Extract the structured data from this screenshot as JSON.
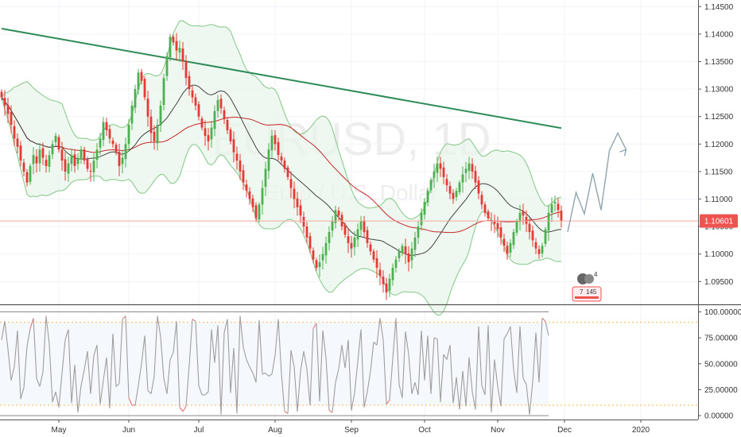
{
  "watermark": {
    "symbol": "EURUSD, 1D",
    "description": "Euro / U.S. Dollar"
  },
  "colors": {
    "up": "#4caf50",
    "down": "#e53935",
    "band_line": "#81c784",
    "band_fill": "#e8f5e9",
    "sma200": "#2e8b57",
    "sma20": "#424242",
    "sma50": "#c62828",
    "price_line": "#f4a9a0",
    "badge": "#ef5350",
    "projection": "#90a4ae",
    "osc_normal": "#9e9e9e",
    "osc_extreme": "#e57373",
    "osc_fill": "#f5f8fc",
    "level_line": "#ffb74d"
  },
  "chart_data": [
    {
      "type": "candlestick",
      "y_axis": {
        "ylim": [
          1.091,
          1.1462
        ],
        "ticks": [
          "1.14500",
          "1.14000",
          "1.13500",
          "1.13000",
          "1.12500",
          "1.12000",
          "1.11500",
          "1.11000",
          "1.10500",
          "1.10000",
          "1.09500"
        ]
      },
      "x_axis": {
        "ticks": [
          "May",
          "Jun",
          "Jul",
          "Aug",
          "Sep",
          "Oct",
          "Nov",
          "Dec",
          "2020"
        ],
        "tick_index": [
          18,
          40,
          62,
          86,
          110,
          133,
          156,
          177,
          201
        ]
      },
      "current_price": {
        "value": 1.10601,
        "label": "1.10601"
      },
      "closes": [
        1.1285,
        1.127,
        1.1255,
        1.1235,
        1.121,
        1.1195,
        1.117,
        1.115,
        1.113,
        1.116,
        1.118,
        1.1165,
        1.119,
        1.1175,
        1.116,
        1.118,
        1.12,
        1.1215,
        1.119,
        1.117,
        1.115,
        1.1165,
        1.118,
        1.116,
        1.1175,
        1.119,
        1.117,
        1.1155,
        1.115,
        1.117,
        1.119,
        1.121,
        1.124,
        1.1225,
        1.121,
        1.12,
        1.1185,
        1.116,
        1.1175,
        1.12,
        1.1235,
        1.127,
        1.13,
        1.133,
        1.1315,
        1.1285,
        1.125,
        1.122,
        1.1205,
        1.1235,
        1.127,
        1.132,
        1.136,
        1.1395,
        1.1385,
        1.137,
        1.1375,
        1.135,
        1.132,
        1.13,
        1.1285,
        1.127,
        1.125,
        1.123,
        1.1215,
        1.1205,
        1.123,
        1.126,
        1.128,
        1.1265,
        1.1245,
        1.1225,
        1.1205,
        1.1185,
        1.117,
        1.115,
        1.113,
        1.1115,
        1.11,
        1.1085,
        1.1065,
        1.109,
        1.112,
        1.1155,
        1.119,
        1.1215,
        1.12,
        1.118,
        1.117,
        1.1155,
        1.114,
        1.112,
        1.11,
        1.1085,
        1.107,
        1.105,
        1.103,
        1.101,
        1.099,
        1.0975,
        1.0985,
        1.1,
        1.102,
        1.104,
        1.106,
        1.108,
        1.107,
        1.105,
        1.1035,
        1.102,
        1.101,
        1.103,
        1.1045,
        1.106,
        1.104,
        1.102,
        1.1005,
        1.099,
        1.0975,
        1.096,
        1.0945,
        1.093,
        1.0955,
        1.0975,
        1.099,
        1.1005,
        1.1015,
        1.1,
        1.0985,
        1.101,
        1.103,
        1.105,
        1.1075,
        1.1095,
        1.1115,
        1.1135,
        1.115,
        1.1165,
        1.1155,
        1.114,
        1.1125,
        1.111,
        1.11,
        1.1115,
        1.113,
        1.1145,
        1.1155,
        1.1165,
        1.115,
        1.113,
        1.111,
        1.109,
        1.1075,
        1.1065,
        1.106,
        1.1055,
        1.1045,
        1.103,
        1.1015,
        1.1,
        1.102,
        1.104,
        1.106,
        1.1075,
        1.107,
        1.1055,
        1.104,
        1.1025,
        1.101,
        1.1,
        1.1015,
        1.1045,
        1.1075,
        1.109,
        1.1095,
        1.108,
        1.106
      ],
      "overlays": [
        {
          "name": "SMA 200",
          "values": [
            1.141,
            1.1229
          ]
        },
        {
          "name": "SMA 20"
        },
        {
          "name": "SMA 50"
        },
        {
          "name": "Bollinger Bands",
          "period": 20,
          "stddev": 2
        }
      ]
    },
    {
      "type": "line",
      "y_axis": {
        "ylim": [
          -3,
          105
        ],
        "ticks": [
          "100.00000",
          "75.00000",
          "50.00000",
          "25.00000",
          "0.00000"
        ]
      },
      "levels": [
        90,
        10
      ],
      "overbought": 80,
      "oversold": 20,
      "values": [
        73,
        91,
        64,
        34,
        47,
        82,
        16,
        27,
        67,
        84,
        94,
        36,
        28,
        42,
        96,
        69,
        13,
        23,
        8,
        41,
        73,
        83,
        12,
        49,
        3,
        29,
        44,
        62,
        21,
        58,
        68,
        11,
        34,
        56,
        7,
        79,
        28,
        31,
        93,
        96,
        17,
        10,
        10,
        29,
        50,
        77,
        24,
        21,
        38,
        96,
        76,
        36,
        21,
        54,
        61,
        91,
        8,
        4,
        9,
        49,
        93,
        91,
        29,
        20,
        20,
        23,
        83,
        51,
        87,
        1,
        80,
        93,
        22,
        65,
        2,
        96,
        66,
        54,
        47,
        41,
        32,
        92,
        40,
        41,
        38,
        40,
        58,
        93,
        40,
        4,
        2,
        63,
        47,
        4,
        43,
        62,
        45,
        10,
        84,
        89,
        14,
        82,
        56,
        5,
        3,
        32,
        45,
        68,
        46,
        73,
        5,
        22,
        52,
        83,
        8,
        23,
        43,
        71,
        68,
        94,
        73,
        11,
        15,
        55,
        94,
        30,
        17,
        81,
        59,
        21,
        32,
        20,
        82,
        34,
        77,
        21,
        75,
        74,
        13,
        59,
        54,
        68,
        12,
        37,
        6,
        43,
        9,
        56,
        23,
        6,
        86,
        29,
        20,
        87,
        3,
        54,
        28,
        9,
        74,
        79,
        86,
        44,
        22,
        86,
        36,
        30,
        1,
        32,
        80,
        32,
        94,
        91,
        77
      ]
    }
  ],
  "projection": {
    "y_values": [
      1.104,
      1.1112,
      1.1073,
      1.1147,
      1.108,
      1.1188,
      1.122,
      1.119
    ]
  },
  "badges": {
    "events": "4",
    "news": "7",
    "count": "145"
  }
}
